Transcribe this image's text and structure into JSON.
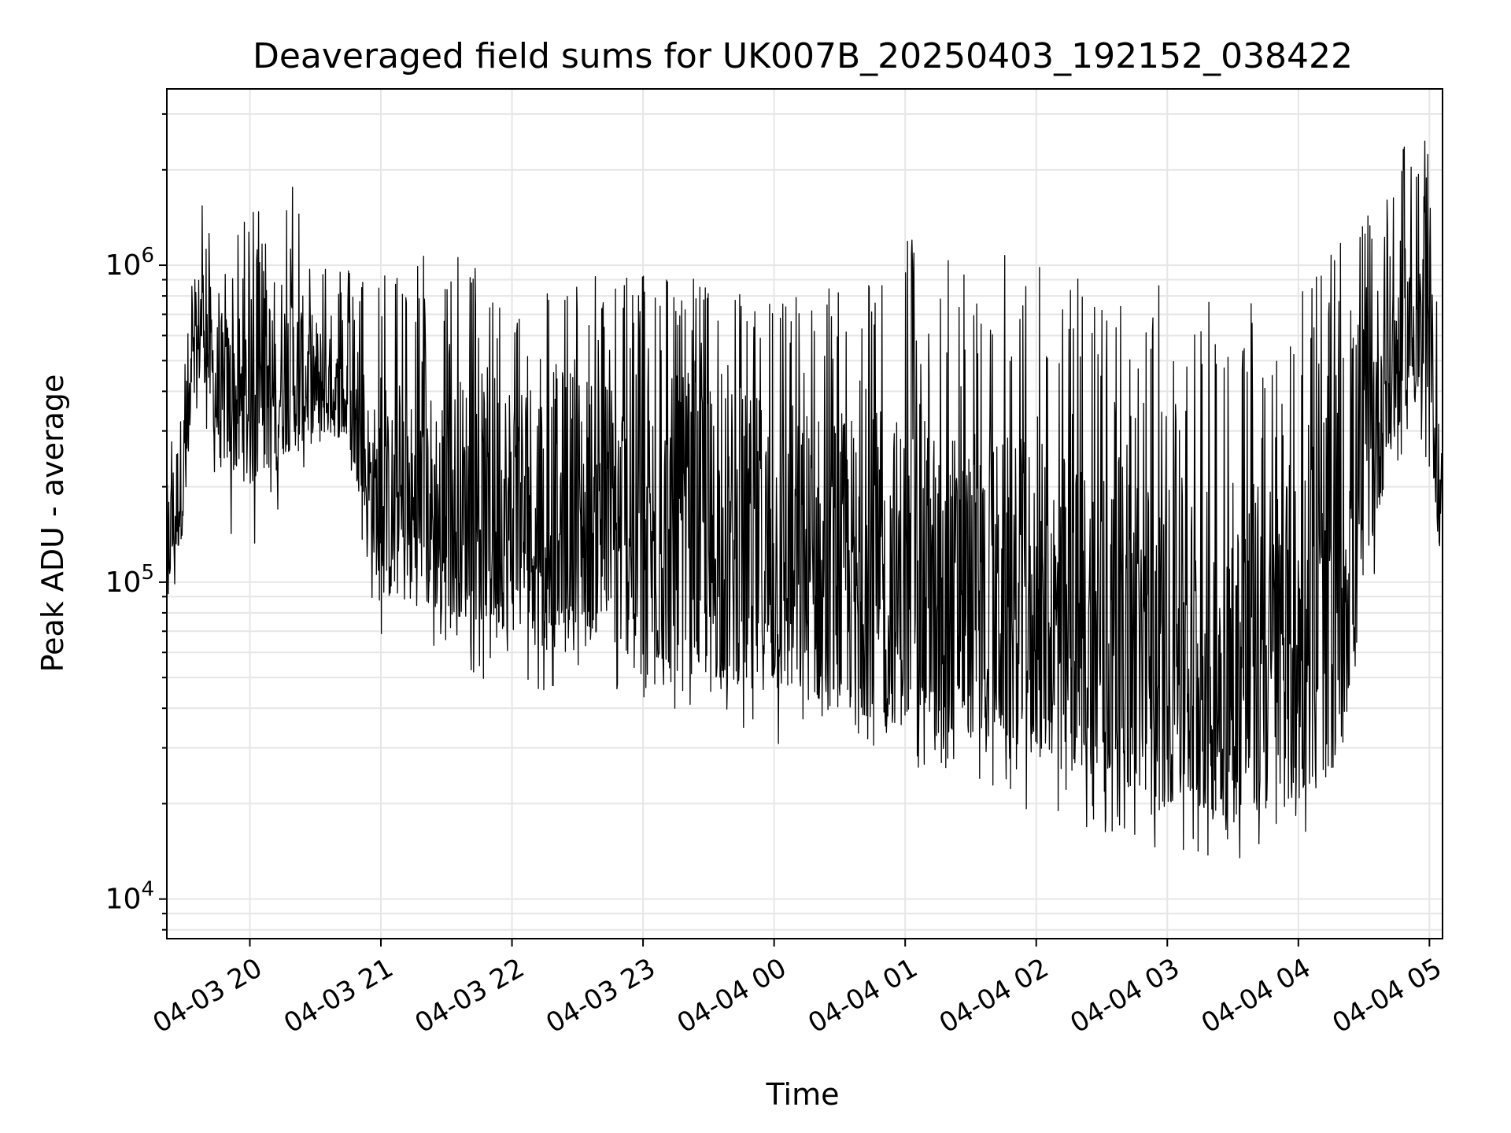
{
  "chart_data": {
    "type": "line",
    "title": "Deaveraged field sums for UK007B_20250403_192152_038422",
    "xlabel": "Time",
    "ylabel": "Peak ADU - average",
    "y_scale": "log",
    "ylim": [
      7500,
      3600000
    ],
    "xlim": [
      "2025-04-03 19:22",
      "2025-04-04 05:06"
    ],
    "grid": true,
    "line_color": "#000000",
    "grid_color": "#e6e6e6",
    "x_ticks": [
      {
        "label": "04-03 20",
        "time": "2025-04-03 20:00"
      },
      {
        "label": "04-03 21",
        "time": "2025-04-03 21:00"
      },
      {
        "label": "04-03 22",
        "time": "2025-04-03 22:00"
      },
      {
        "label": "04-03 23",
        "time": "2025-04-03 23:00"
      },
      {
        "label": "04-04 00",
        "time": "2025-04-04 00:00"
      },
      {
        "label": "04-04 01",
        "time": "2025-04-04 01:00"
      },
      {
        "label": "04-04 02",
        "time": "2025-04-04 02:00"
      },
      {
        "label": "04-04 03",
        "time": "2025-04-04 03:00"
      },
      {
        "label": "04-04 04",
        "time": "2025-04-04 04:00"
      },
      {
        "label": "04-04 05",
        "time": "2025-04-04 05:00"
      }
    ],
    "y_ticks": [
      {
        "value": 10000,
        "base": "10",
        "exp": "4"
      },
      {
        "value": 100000,
        "base": "10",
        "exp": "5"
      },
      {
        "value": 1000000,
        "base": "10",
        "exp": "6"
      }
    ],
    "series": [
      {
        "envelope": {
          "times": [
            "2025-04-03 19:22",
            "2025-04-03 19:30",
            "2025-04-03 19:38",
            "2025-04-03 19:45",
            "2025-04-03 20:00",
            "2025-04-03 20:15",
            "2025-04-03 20:30",
            "2025-04-03 20:45",
            "2025-04-03 21:00",
            "2025-04-03 21:30",
            "2025-04-03 22:00",
            "2025-04-03 22:30",
            "2025-04-03 23:00",
            "2025-04-03 23:30",
            "2025-04-04 00:00",
            "2025-04-04 00:30",
            "2025-04-04 01:00",
            "2025-04-04 01:30",
            "2025-04-04 02:00",
            "2025-04-04 02:30",
            "2025-04-04 03:00",
            "2025-04-04 03:30",
            "2025-04-04 04:00",
            "2025-04-04 04:20",
            "2025-04-04 04:35",
            "2025-04-04 04:50",
            "2025-04-04 05:00",
            "2025-04-04 05:06"
          ],
          "low": [
            90000,
            150000,
            500000,
            250000,
            200000,
            250000,
            300000,
            280000,
            90000,
            80000,
            70000,
            75000,
            55000,
            50000,
            45000,
            40000,
            35000,
            33000,
            30000,
            24000,
            20000,
            18000,
            20000,
            30000,
            150000,
            400000,
            300000,
            100000
          ],
          "high": [
            200000,
            400000,
            1200000,
            700000,
            800000,
            1000000,
            700000,
            500000,
            350000,
            450000,
            500000,
            500000,
            450000,
            450000,
            400000,
            350000,
            350000,
            300000,
            280000,
            250000,
            220000,
            200000,
            250000,
            600000,
            900000,
            1300000,
            1200000,
            250000
          ],
          "spike_max": [
            250000,
            500000,
            1800000,
            900000,
            1500000,
            2500000,
            1200000,
            1000000,
            1000000,
            1200000,
            800000,
            900000,
            1000000,
            900000,
            800000,
            900000,
            1300000,
            1000000,
            1200000,
            800000,
            900000,
            800000,
            900000,
            1200000,
            1500000,
            2500000,
            2500000,
            300000
          ],
          "dip_min": [
            75000,
            120000,
            400000,
            150000,
            120000,
            180000,
            250000,
            200000,
            65000,
            60000,
            42000,
            45000,
            40000,
            38000,
            30000,
            28000,
            26000,
            24000,
            18000,
            15000,
            14000,
            13000,
            15000,
            25000,
            100000,
            300000,
            220000,
            100000
          ]
        }
      }
    ]
  }
}
